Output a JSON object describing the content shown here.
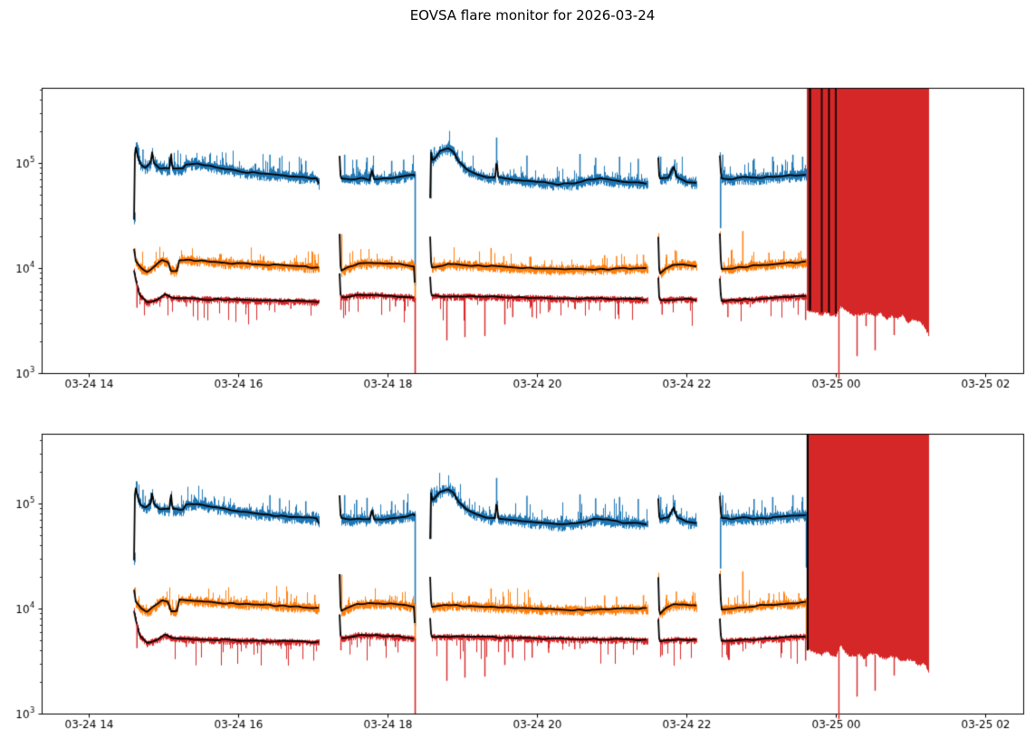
{
  "chart_data": {
    "type": "line",
    "title": "EOVSA flare monitor for 2026-03-24",
    "yscale": "log",
    "xlabel": "",
    "ylabel": "",
    "grid": false,
    "legend": "none",
    "x_axis_hours_range": [
      13.37,
      26.51
    ],
    "x_ticks": [
      {
        "hour": 14,
        "label": "03-24 14"
      },
      {
        "hour": 16,
        "label": "03-24 16"
      },
      {
        "hour": 18,
        "label": "03-24 18"
      },
      {
        "hour": 20,
        "label": "03-24 20"
      },
      {
        "hour": 22,
        "label": "03-24 22"
      },
      {
        "hour": 24,
        "label": "03-25 00"
      },
      {
        "hour": 26,
        "label": "03-25 02"
      }
    ],
    "y_ticks": [
      {
        "value": 1000,
        "base": "10",
        "exp": "3"
      },
      {
        "value": 10000,
        "base": "10",
        "exp": "4"
      },
      {
        "value": 100000,
        "base": "10",
        "exp": "5"
      }
    ],
    "colors": {
      "blue": "#1f77b4",
      "orange": "#ff7f0e",
      "red": "#d62728",
      "median": "#000000",
      "axis": "#000000",
      "background": "#ffffff"
    },
    "band_noise": {
      "blue": {
        "lo": [
          0.05,
          0.1
        ],
        "hi": [
          0.03,
          0.1
        ],
        "spike_p": 0.22,
        "spike_amp": 0.55
      },
      "orange": {
        "lo": [
          0.05,
          0.08
        ],
        "hi": [
          0.03,
          0.08
        ],
        "spike_p": 0.12,
        "spike_amp": 0.5
      },
      "red": {
        "lo": [
          0.03,
          0.07
        ],
        "hi": [
          0.02,
          0.05
        ],
        "dip_p": 0.08,
        "dip_amp": 0.3
      }
    },
    "segments": [
      {
        "t0": 14.606,
        "t1": 17.079,
        "blue": [
          [
            14.606,
            29000
          ],
          [
            14.62,
            152000
          ],
          [
            14.66,
            112000
          ],
          [
            14.7,
            96000
          ],
          [
            14.76,
            91000
          ],
          [
            14.83,
            101000
          ],
          [
            14.85,
            128000
          ],
          [
            14.87,
            100000
          ],
          [
            14.95,
            89000
          ],
          [
            15.08,
            88000
          ],
          [
            15.1,
            126000
          ],
          [
            15.12,
            88000
          ],
          [
            15.26,
            88000
          ],
          [
            15.3,
            97000
          ],
          [
            15.45,
            100000
          ],
          [
            15.62,
            94000
          ],
          [
            15.85,
            88000
          ],
          [
            16.1,
            82000
          ],
          [
            16.5,
            77000
          ],
          [
            16.8,
            74000
          ],
          [
            17.05,
            72000
          ],
          [
            17.079,
            64000
          ]
        ],
        "blue_spikes": [
          [
            14.72,
            135000
          ],
          [
            15.55,
            115000
          ],
          [
            16.42,
            120000
          ],
          [
            16.55,
            112000
          ],
          [
            16.9,
            105000
          ]
        ],
        "orange": [
          [
            14.606,
            15000
          ],
          [
            14.63,
            11500
          ],
          [
            14.7,
            10000
          ],
          [
            14.78,
            9200
          ],
          [
            14.88,
            10500
          ],
          [
            14.98,
            12000
          ],
          [
            15.06,
            11600
          ],
          [
            15.1,
            9400
          ],
          [
            15.18,
            9400
          ],
          [
            15.21,
            12000
          ],
          [
            15.5,
            11800
          ],
          [
            15.8,
            11200
          ],
          [
            16.2,
            11000
          ],
          [
            16.6,
            10600
          ],
          [
            17.0,
            10200
          ],
          [
            17.079,
            10000
          ]
        ],
        "orange_spikes": [
          [
            14.61,
            15500
          ],
          [
            15.9,
            12800
          ],
          [
            16.75,
            12500
          ],
          [
            17.02,
            13500
          ]
        ],
        "red": [
          [
            14.606,
            9500
          ],
          [
            14.63,
            7800
          ],
          [
            14.68,
            5600
          ],
          [
            14.78,
            4700
          ],
          [
            14.92,
            5000
          ],
          [
            15.02,
            5600
          ],
          [
            15.12,
            5200
          ],
          [
            15.4,
            5100
          ],
          [
            15.9,
            5000
          ],
          [
            16.4,
            4900
          ],
          [
            17.079,
            4800
          ]
        ],
        "red_dips": [
          [
            14.64,
            4200
          ],
          [
            15.3,
            4300
          ],
          [
            16.1,
            4200
          ],
          [
            16.7,
            4100
          ]
        ]
      },
      {
        "t0": 17.358,
        "t1": 18.368,
        "blue": [
          [
            17.358,
            118000
          ],
          [
            17.372,
            72000
          ],
          [
            17.5,
            70000
          ],
          [
            17.64,
            72000
          ],
          [
            17.76,
            70000
          ],
          [
            17.79,
            88000
          ],
          [
            17.82,
            70000
          ],
          [
            18.0,
            72000
          ],
          [
            18.15,
            74000
          ],
          [
            18.3,
            77000
          ],
          [
            18.364,
            78000
          ],
          [
            18.368,
            7000
          ]
        ],
        "blue_spikes": [
          [
            17.42,
            120000
          ],
          [
            17.58,
            108000
          ],
          [
            17.72,
            113000
          ],
          [
            18.05,
            105000
          ],
          [
            18.21,
            108000
          ]
        ],
        "orange": [
          [
            17.358,
            21000
          ],
          [
            17.372,
            9300
          ],
          [
            17.45,
            10000
          ],
          [
            17.6,
            11000
          ],
          [
            17.9,
            11200
          ],
          [
            18.2,
            10800
          ],
          [
            18.36,
            10500
          ],
          [
            18.368,
            5200
          ]
        ],
        "orange_spikes": [
          [
            17.38,
            21000
          ],
          [
            18.05,
            13000
          ]
        ],
        "red": [
          [
            17.358,
            8800
          ],
          [
            17.372,
            5200
          ],
          [
            17.6,
            5600
          ],
          [
            17.95,
            5500
          ],
          [
            18.3,
            5300
          ],
          [
            18.364,
            5200
          ]
        ],
        "red_dips": [
          [
            17.37,
            4000
          ],
          [
            18.1,
            4300
          ]
        ]
      },
      {
        "t0": 18.57,
        "t1": 21.479,
        "blue": [
          [
            18.57,
            46000
          ],
          [
            18.578,
            130000
          ],
          [
            18.6,
            106000
          ],
          [
            18.63,
            110000
          ],
          [
            18.7,
            130000
          ],
          [
            18.81,
            138000
          ],
          [
            18.88,
            128000
          ],
          [
            18.95,
            104000
          ],
          [
            19.05,
            88000
          ],
          [
            19.2,
            78000
          ],
          [
            19.35,
            73000
          ],
          [
            19.44,
            72000
          ],
          [
            19.46,
            108000
          ],
          [
            19.48,
            72000
          ],
          [
            19.7,
            70000
          ],
          [
            20.0,
            66000
          ],
          [
            20.3,
            63000
          ],
          [
            20.5,
            64000
          ],
          [
            20.7,
            69000
          ],
          [
            20.85,
            72000
          ],
          [
            21.0,
            68000
          ],
          [
            21.15,
            66000
          ],
          [
            21.35,
            66000
          ],
          [
            21.479,
            63000
          ]
        ],
        "blue_spikes": [
          [
            18.62,
            142000
          ],
          [
            19.454,
            175000
          ],
          [
            19.86,
            118000
          ],
          [
            20.57,
            122000
          ],
          [
            20.78,
            112000
          ],
          [
            21.1,
            115000
          ],
          [
            21.35,
            110000
          ]
        ],
        "orange": [
          [
            18.57,
            20000
          ],
          [
            18.585,
            10200
          ],
          [
            18.8,
            10800
          ],
          [
            19.1,
            10600
          ],
          [
            19.4,
            10400
          ],
          [
            19.8,
            10000
          ],
          [
            20.2,
            9800
          ],
          [
            20.6,
            9700
          ],
          [
            21.0,
            9800
          ],
          [
            21.3,
            10000
          ],
          [
            21.479,
            10000
          ]
        ],
        "orange_spikes": [
          [
            19.38,
            15500
          ],
          [
            19.55,
            13000
          ],
          [
            19.9,
            12800
          ],
          [
            20.9,
            13300
          ],
          [
            21.06,
            13000
          ],
          [
            21.42,
            13400
          ]
        ],
        "red": [
          [
            18.57,
            8200
          ],
          [
            18.585,
            5400
          ],
          [
            19.0,
            5400
          ],
          [
            19.5,
            5300
          ],
          [
            20.0,
            5200
          ],
          [
            20.6,
            5100
          ],
          [
            21.1,
            5100
          ],
          [
            21.479,
            5000
          ]
        ],
        "red_dips": [
          [
            18.788,
            2050
          ],
          [
            19.03,
            2200
          ],
          [
            19.297,
            2250
          ],
          [
            19.564,
            2900
          ],
          [
            19.67,
            3400
          ],
          [
            19.93,
            3400
          ],
          [
            20.15,
            3800
          ],
          [
            20.5,
            4100
          ]
        ]
      },
      {
        "t0": 21.624,
        "t1": 22.145,
        "blue": [
          [
            21.624,
            112000
          ],
          [
            21.638,
            71000
          ],
          [
            21.76,
            73000
          ],
          [
            21.83,
            92000
          ],
          [
            21.87,
            74000
          ],
          [
            22.0,
            67000
          ],
          [
            22.145,
            65000
          ]
        ],
        "blue_spikes": [
          [
            21.65,
            115000
          ],
          [
            21.84,
            108000
          ]
        ],
        "orange": [
          [
            21.624,
            20000
          ],
          [
            21.638,
            8800
          ],
          [
            21.72,
            10000
          ],
          [
            21.82,
            10800
          ],
          [
            21.95,
            11000
          ],
          [
            22.145,
            10500
          ]
        ],
        "orange_spikes": [
          [
            21.73,
            13500
          ],
          [
            21.86,
            14500
          ]
        ],
        "red": [
          [
            21.624,
            8000
          ],
          [
            21.638,
            4900
          ],
          [
            21.9,
            5100
          ],
          [
            22.145,
            5000
          ]
        ],
        "red_dips": [
          [
            21.67,
            3600
          ]
        ]
      },
      {
        "t0": 22.448,
        "t1": 23.605,
        "blue": [
          [
            22.448,
            118000
          ],
          [
            22.465,
            72000
          ],
          [
            22.6,
            71000
          ],
          [
            22.75,
            73000
          ],
          [
            22.9,
            72000
          ],
          [
            23.1,
            73000
          ],
          [
            23.3,
            75000
          ],
          [
            23.5,
            77000
          ],
          [
            23.605,
            78000
          ]
        ],
        "blue_spikes": [
          [
            22.48,
            120000
          ],
          [
            22.9,
            110000
          ],
          [
            23.15,
            115000
          ],
          [
            23.42,
            120000
          ],
          [
            23.55,
            115000
          ]
        ],
        "orange": [
          [
            22.448,
            21500
          ],
          [
            22.465,
            9800
          ],
          [
            22.6,
            10000
          ],
          [
            22.9,
            10500
          ],
          [
            23.2,
            11000
          ],
          [
            23.45,
            11200
          ],
          [
            23.605,
            11500
          ]
        ],
        "orange_spikes": [
          [
            22.75,
            22500
          ],
          [
            23.1,
            14000
          ],
          [
            23.3,
            14500
          ],
          [
            23.5,
            14000
          ]
        ],
        "red": [
          [
            22.448,
            8000
          ],
          [
            22.465,
            4900
          ],
          [
            22.8,
            5000
          ],
          [
            23.2,
            5200
          ],
          [
            23.5,
            5400
          ],
          [
            23.605,
            5400
          ]
        ],
        "red_dips": [
          [
            22.55,
            3400
          ],
          [
            23.59,
            3200
          ]
        ]
      }
    ],
    "saturated_block": {
      "t0": 23.605,
      "t1": 25.245,
      "fill": "red",
      "top": "axis_top",
      "bottom_keypoints": [
        [
          23.605,
          4000
        ],
        [
          23.8,
          3800
        ],
        [
          24.0,
          3700
        ],
        [
          24.06,
          4600
        ],
        [
          24.15,
          3800
        ],
        [
          24.35,
          3500
        ],
        [
          24.6,
          3500
        ],
        [
          24.8,
          3400
        ],
        [
          25.0,
          3200
        ],
        [
          25.15,
          3000
        ],
        [
          25.2,
          2700
        ],
        [
          25.245,
          2300
        ]
      ],
      "dips": [
        [
          24.036,
          900
        ],
        [
          24.279,
          1450
        ],
        [
          24.4,
          2800
        ],
        [
          24.521,
          1650
        ],
        [
          24.776,
          2300
        ]
      ]
    },
    "panels": [
      {
        "name": "top-panel",
        "ylim": [
          1000,
          520000
        ],
        "seed": 13,
        "block_black_lines_t": [
          23.648,
          23.806,
          23.903,
          23.994
        ],
        "block_black_lines_w": [
          2.4,
          1.8,
          1.8,
          1.8
        ],
        "vlines": [
          {
            "t": 14.612,
            "color": "blue",
            "v1": 34000,
            "v0": 27500
          },
          {
            "t": 18.364,
            "color": "blue",
            "v1": 80000,
            "v0": 6800
          },
          {
            "t": 18.364,
            "color": "orange",
            "v1": 11000,
            "v0": 5000
          },
          {
            "t": 18.364,
            "color": "red",
            "v1": 5200,
            "v0": 820
          },
          {
            "t": 18.575,
            "color": "blue",
            "v1": 135000,
            "v0": 46000
          },
          {
            "t": 22.452,
            "color": "blue",
            "v1": 74000,
            "v0": 24000
          }
        ]
      },
      {
        "name": "bottom-panel",
        "ylim": [
          1000,
          460000
        ],
        "seed": 47,
        "block_black_lines_t": [
          23.617
        ],
        "block_black_lines_w": [
          2.2
        ],
        "vlines": [
          {
            "t": 14.612,
            "color": "blue",
            "v1": 34000,
            "v0": 27500
          },
          {
            "t": 18.364,
            "color": "blue",
            "v1": 80000,
            "v0": 6800
          },
          {
            "t": 18.364,
            "color": "orange",
            "v1": 11000,
            "v0": 5000
          },
          {
            "t": 18.364,
            "color": "red",
            "v1": 5200,
            "v0": 820
          },
          {
            "t": 18.575,
            "color": "blue",
            "v1": 135000,
            "v0": 46000
          },
          {
            "t": 22.452,
            "color": "blue",
            "v1": 74000,
            "v0": 24000
          },
          {
            "t": 23.601,
            "color": "blue",
            "v1": 76000,
            "v0": 24500
          },
          {
            "t": 23.601,
            "color": "orange",
            "v1": 11500,
            "v0": 5200
          }
        ]
      }
    ]
  }
}
